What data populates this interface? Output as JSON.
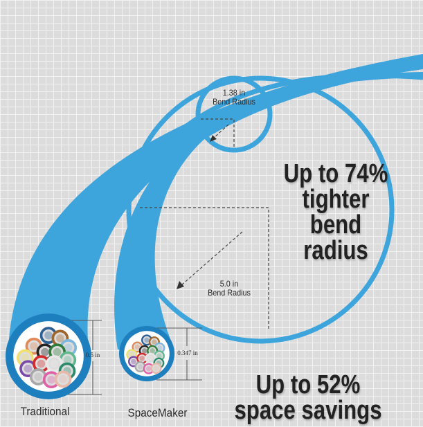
{
  "colors": {
    "cable": "#3ea4dc",
    "cable_dark": "#1e7fbf",
    "background": "#dcdcdc"
  },
  "small_loop": {
    "value": "1.38 in",
    "label": "Bend Radius"
  },
  "big_loop": {
    "value": "5.0 in",
    "label": "Bend Radius"
  },
  "headline_bend": [
    "Up to 74%",
    "tighter",
    "bend",
    "radius"
  ],
  "headline_space": [
    "Up to 52%",
    "space savings"
  ],
  "traditional": {
    "label": "Traditional",
    "diameter": "0.5 in"
  },
  "spacemaker": {
    "label": "SpaceMaker",
    "diameter": "0.347 in"
  },
  "strand_colors": [
    "#2c5f94",
    "#a0662a",
    "#e08a5a",
    "#7fb6dc",
    "#f0e070",
    "#222222",
    "#2f7d3a",
    "#5fb88e",
    "#7a4aa8",
    "#d62a2a",
    "#e8e8e8",
    "#2a8a6a",
    "#a8a8a8",
    "#e060a8",
    "#e8b8a8"
  ]
}
